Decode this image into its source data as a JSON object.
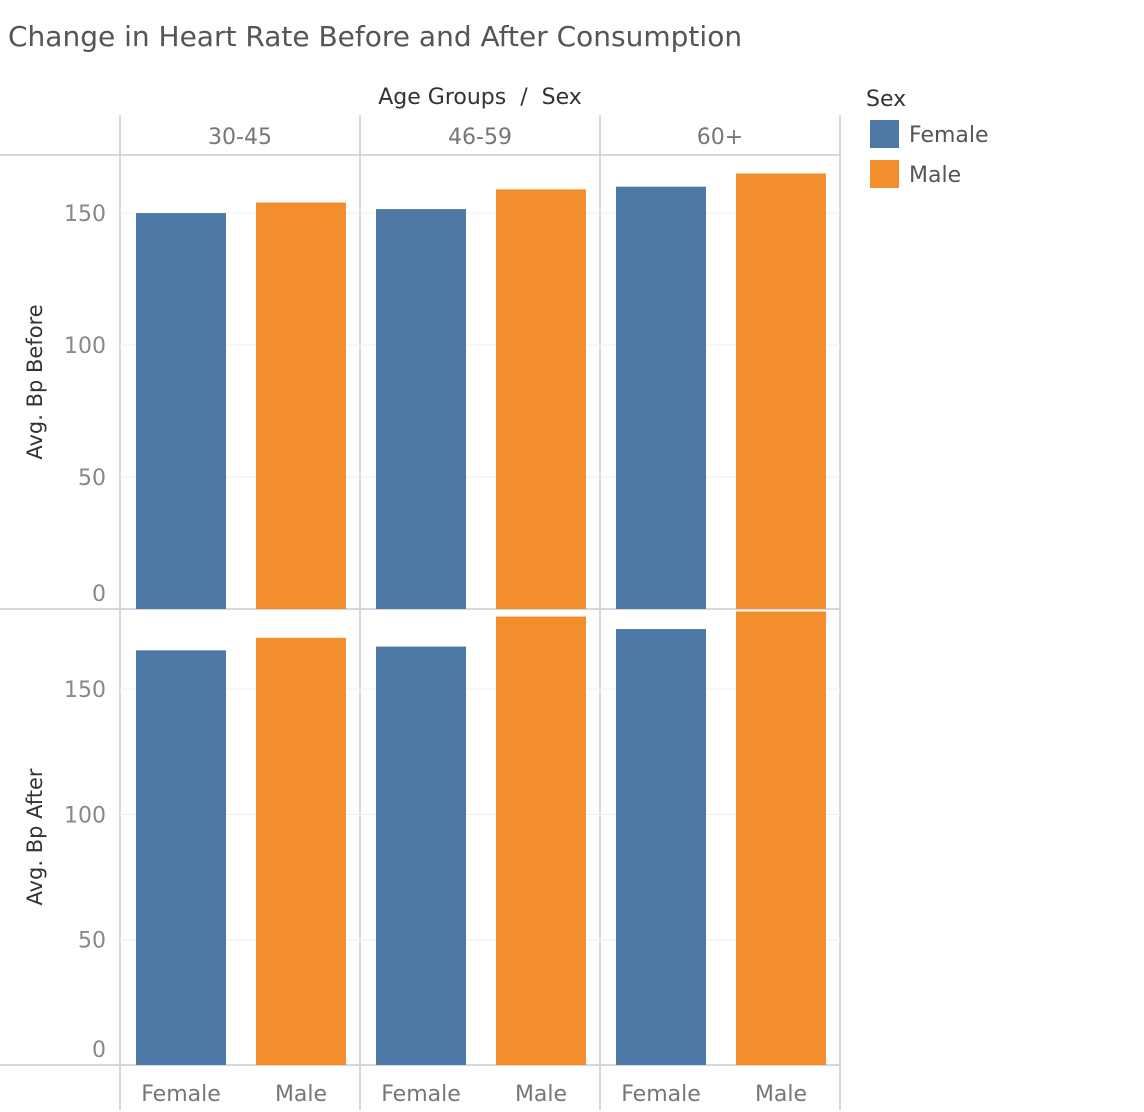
{
  "title": "Change in Heart Rate Before and After Consumption",
  "column_header": "Age Groups  /  Sex",
  "legend": {
    "title": "Sex",
    "items": [
      {
        "label": "Female",
        "color": "#4e79a7"
      },
      {
        "label": "Male",
        "color": "#f28e2b"
      }
    ]
  },
  "chart_data": {
    "type": "bar",
    "title": "Change in Heart Rate Before and After Consumption",
    "groups": [
      "30-45",
      "46-59",
      "60+"
    ],
    "categories": [
      "Female",
      "Male"
    ],
    "colors": {
      "Female": "#4e79a7",
      "Male": "#f28e2b"
    },
    "panels": [
      {
        "ylabel": "Avg. Bp Before",
        "ylim": [
          0,
          172
        ],
        "yticks": [
          0,
          50,
          100,
          150
        ],
        "values": [
          [
            150,
            154
          ],
          [
            151.5,
            159
          ],
          [
            160,
            165
          ]
        ]
      },
      {
        "ylabel": "Avg. Bp After",
        "ylim": [
          0,
          182
        ],
        "yticks": [
          0,
          50,
          100,
          150
        ],
        "values": [
          [
            165.5,
            170.5
          ],
          [
            167,
            179
          ],
          [
            174,
            181
          ]
        ]
      }
    ],
    "grid": true,
    "legend_position": "top-right"
  }
}
